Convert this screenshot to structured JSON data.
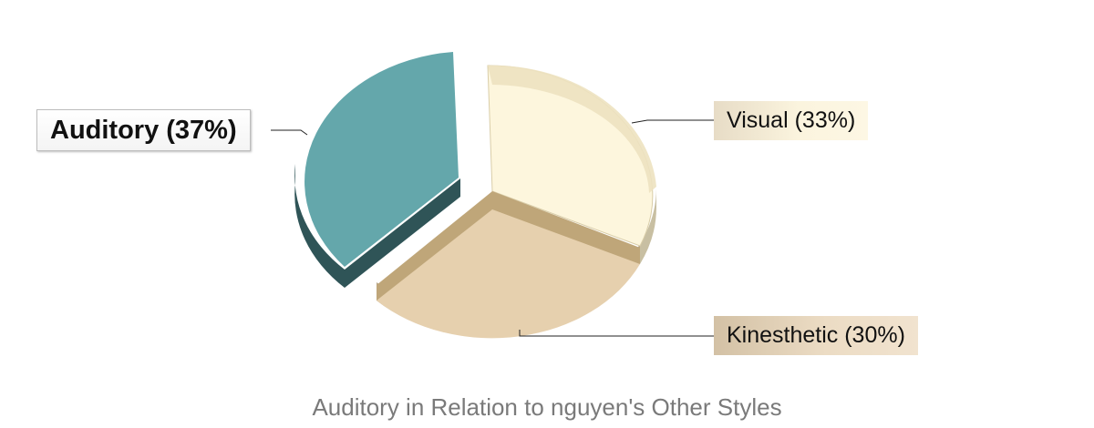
{
  "chart_data": {
    "type": "pie",
    "title": "Auditory in Relation to nguyen's Other Styles",
    "slices": [
      {
        "name": "Visual",
        "label": "Visual (33%)",
        "value": 33,
        "color": "#fdf6dd",
        "exploded": false,
        "highlighted": false
      },
      {
        "name": "Kinesthetic",
        "label": "Kinesthetic (30%)",
        "value": 30,
        "color": "#e6d0ae",
        "exploded": false,
        "highlighted": false
      },
      {
        "name": "Auditory",
        "label": "Auditory (37%)",
        "value": 37,
        "color": "#64a7ab",
        "exploded": true,
        "highlighted": true
      }
    ],
    "style": "3d",
    "legend": "none"
  }
}
